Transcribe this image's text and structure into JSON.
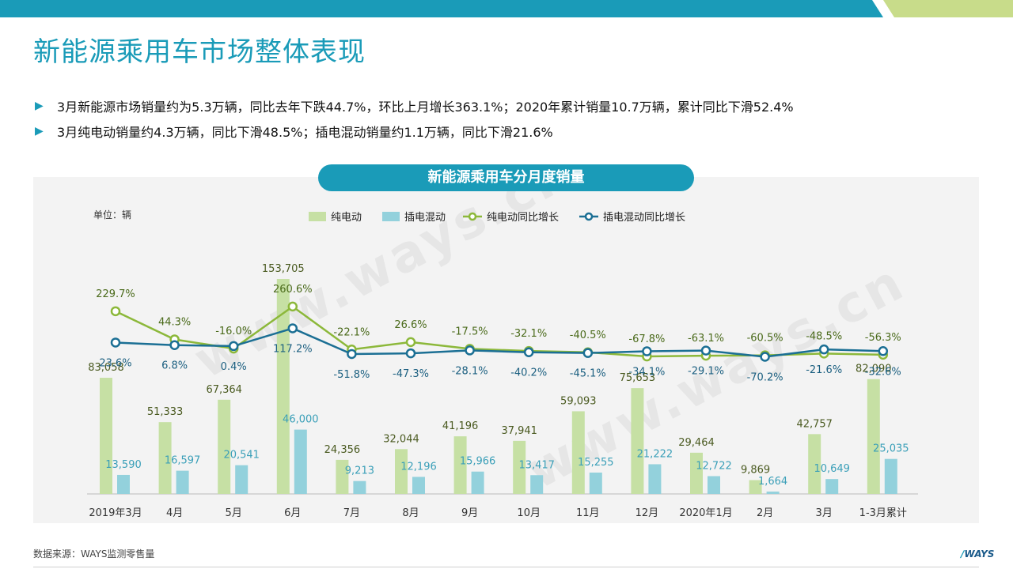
{
  "page_title": "新能源乘用车市场整体表现",
  "bullets": [
    "3月新能源市场销量约为5.3万辆，同比去年下跌44.7%，环比上月增长363.1%；2020年累计销量10.7万辆，累计同比下滑52.4%",
    "3月纯电动销量约4.3万辆，同比下滑48.5%；插电混动销量约1.1万辆，同比下滑21.6%"
  ],
  "chart_header": "新能源乘用车分月度销量",
  "source": "数据来源：WAYS监测零售量",
  "logo": "WAYS",
  "watermark": "www.ways.cn",
  "colors": {
    "accent": "#1a9bb8",
    "bev_bar": "#c6e0a4",
    "phev_bar": "#93d1dc",
    "bev_line": "#8cb83a",
    "phev_line": "#1b6f94",
    "bev_bar_label": "#4a5a20",
    "phev_bar_label": "#3a9fb8",
    "bev_line_label": "#4a6a1a",
    "phev_line_label": "#1b5f80"
  },
  "chart_data": {
    "type": "bar",
    "unit_label": "单位：辆",
    "categories": [
      "2019年3月",
      "4月",
      "5月",
      "6月",
      "7月",
      "8月",
      "9月",
      "10月",
      "11月",
      "12月",
      "2020年1月",
      "2月",
      "3月",
      "1-3月累计"
    ],
    "series": [
      {
        "name": "纯电动",
        "kind": "bar",
        "values": [
          83058,
          51333,
          67364,
          153705,
          24356,
          32044,
          41196,
          37941,
          59093,
          75653,
          29464,
          9869,
          42757,
          82090
        ],
        "labels": [
          "83,058",
          "51,333",
          "67,364",
          "153,705",
          "24,356",
          "32,044",
          "41,196",
          "37,941",
          "59,093",
          "75,653",
          "29,464",
          "9,869",
          "42,757",
          "82,090"
        ]
      },
      {
        "name": "插电混动",
        "kind": "bar",
        "values": [
          13590,
          16597,
          20541,
          46000,
          9213,
          12196,
          15966,
          13417,
          15255,
          21222,
          12722,
          1664,
          10649,
          25035
        ],
        "labels": [
          "13,590",
          "16,597",
          "20,541",
          "46,000",
          "9,213",
          "12,196",
          "15,966",
          "13,417",
          "15,255",
          "21,222",
          "12,722",
          "1,664",
          "10,649",
          "25,035"
        ]
      },
      {
        "name": "纯电动同比增长",
        "kind": "line",
        "values": [
          229.7,
          44.3,
          -16.0,
          260.6,
          -22.1,
          26.6,
          -17.5,
          -32.1,
          -40.5,
          -67.8,
          -63.1,
          -60.5,
          -48.5,
          -56.3
        ],
        "labels": [
          "229.7%",
          "44.3%",
          "-16.0%",
          "260.6%",
          "-22.1%",
          "26.6%",
          "-17.5%",
          "-32.1%",
          "-40.5%",
          "-67.8%",
          "-63.1%",
          "-60.5%",
          "-48.5%",
          "-56.3%"
        ]
      },
      {
        "name": "插电混动同比增长",
        "kind": "line",
        "values": [
          23.6,
          6.8,
          0.4,
          117.2,
          -51.8,
          -47.3,
          -28.1,
          -40.2,
          -45.1,
          -34.1,
          -29.1,
          -70.2,
          -21.6,
          -32.6
        ],
        "labels": [
          "23.6%",
          "6.8%",
          "0.4%",
          "117.2%",
          "-51.8%",
          "-47.3%",
          "-28.1%",
          "-40.2%",
          "-45.1%",
          "-34.1%",
          "-29.1%",
          "-70.2%",
          "-21.6%",
          "-32.6%"
        ]
      }
    ],
    "ylim_bars": [
      0,
      160000
    ],
    "ylim_lines": [
      -200,
      300
    ],
    "legend_position": "top-center",
    "grid": false
  }
}
